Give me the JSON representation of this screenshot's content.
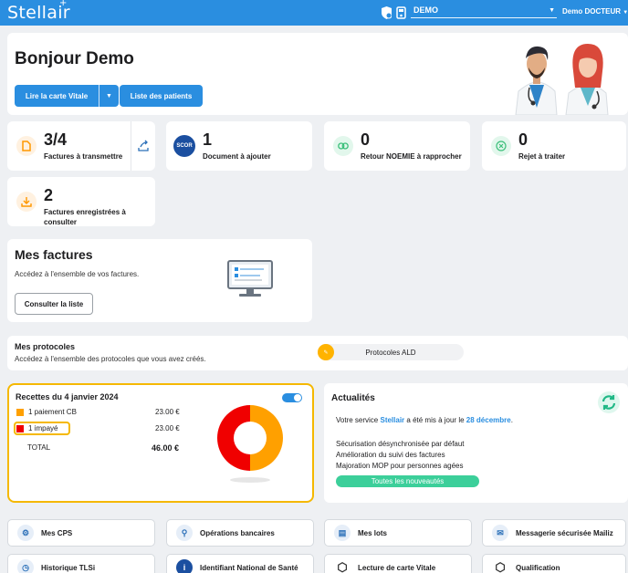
{
  "header": {
    "logo": "Stellair",
    "context": "DEMO",
    "user": "Demo DOCTEUR"
  },
  "welcome": {
    "title": "Bonjour Demo",
    "read_card_button": "Lire la carte Vitale",
    "patients_button": "Liste des patients"
  },
  "stats": [
    {
      "value": "3/4",
      "label": "Factures à transmettre"
    },
    {
      "value": "1",
      "label": "Document à ajouter",
      "icon_text": "SCOR"
    },
    {
      "value": "0",
      "label": "Retour NOEMIE à rapprocher"
    },
    {
      "value": "0",
      "label": "Rejet à traiter"
    },
    {
      "value": "2",
      "label": "Factures enregistrées à consulter"
    }
  ],
  "invoices": {
    "title": "Mes factures",
    "subtitle": "Accédez à l'ensemble de vos factures.",
    "button": "Consulter la liste"
  },
  "protocols": {
    "title": "Mes protocoles",
    "subtitle": "Accédez à l'ensemble des protocoles que vous avez créés.",
    "item": "Protocoles ALD"
  },
  "recettes": {
    "title": "Recettes du 4 janvier 2024",
    "rows": [
      {
        "label": "1 paiement CB",
        "amount": "23.00 €",
        "color": "#ffa000"
      },
      {
        "label": "1 impayé",
        "amount": "23.00 €",
        "color": "#f00000"
      }
    ],
    "total_label": "TOTAL",
    "total_amount": "46.00 €"
  },
  "chart_data": {
    "type": "pie",
    "categories": [
      "1 paiement CB",
      "1 impayé"
    ],
    "values": [
      23.0,
      23.0
    ],
    "colors": [
      "#ffa000",
      "#f00000"
    ]
  },
  "news": {
    "title": "Actualités",
    "intro_prefix": "Votre service",
    "intro_brand": "Stellair",
    "intro_mid": "a été mis à jour le",
    "intro_date": "28 décembre",
    "intro_suffix": ".",
    "items": [
      "Sécurisation désynchronisée par défaut",
      "Amélioration du suivi des factures",
      "Majoration MOP pour personnes agées"
    ],
    "button": "Toutes les nouveautés"
  },
  "shortcuts": [
    {
      "label": "Mes CPS"
    },
    {
      "label": "Opérations bancaires"
    },
    {
      "label": "Mes lots"
    },
    {
      "label": "Messagerie sécurisée Mailiz"
    },
    {
      "label": "Historique TLSi"
    },
    {
      "label": "Identifiant National de Santé"
    },
    {
      "label": "Lecture de carte Vitale"
    },
    {
      "label": "Qualification"
    }
  ],
  "colors": {
    "brand_blue": "#2a8ee0",
    "accent_orange": "#ffa000",
    "alert_red": "#f00000",
    "highlight_yellow": "#f5b800",
    "news_green": "#3ccf9a"
  }
}
